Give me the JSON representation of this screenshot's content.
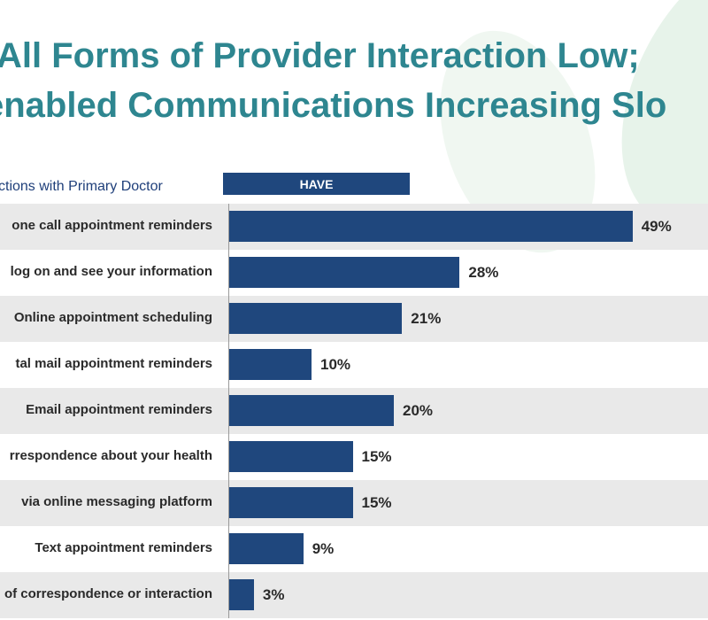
{
  "header": {
    "title_line1": "All Forms of Provider Interaction Low;",
    "title_line2": "enabled Communications Increasing Slo"
  },
  "chart_data": {
    "type": "bar",
    "orientation": "horizontal",
    "subtitle": "ctions with Primary Doctor",
    "series": [
      {
        "name": "HAVE",
        "color": "#1f477d"
      }
    ],
    "categories": [
      "one call appointment reminders",
      "log on and see your information",
      "Online appointment scheduling",
      "tal mail appointment reminders",
      "Email appointment reminders",
      "rrespondence about your health",
      "via  online  messaging platform",
      "Text appointment reminders",
      "of correspondence or interaction"
    ],
    "values": [
      49,
      28,
      21,
      10,
      20,
      15,
      15,
      9,
      3
    ],
    "value_labels": [
      "49%",
      "28%",
      "21%",
      "10%",
      "20%",
      "15%",
      "15%",
      "9%",
      "3%"
    ],
    "xlim": [
      0,
      100
    ],
    "legend": "top"
  },
  "colors": {
    "title": "#2e8690",
    "bar": "#1f477d",
    "row_shade": "#e9e9e9"
  }
}
